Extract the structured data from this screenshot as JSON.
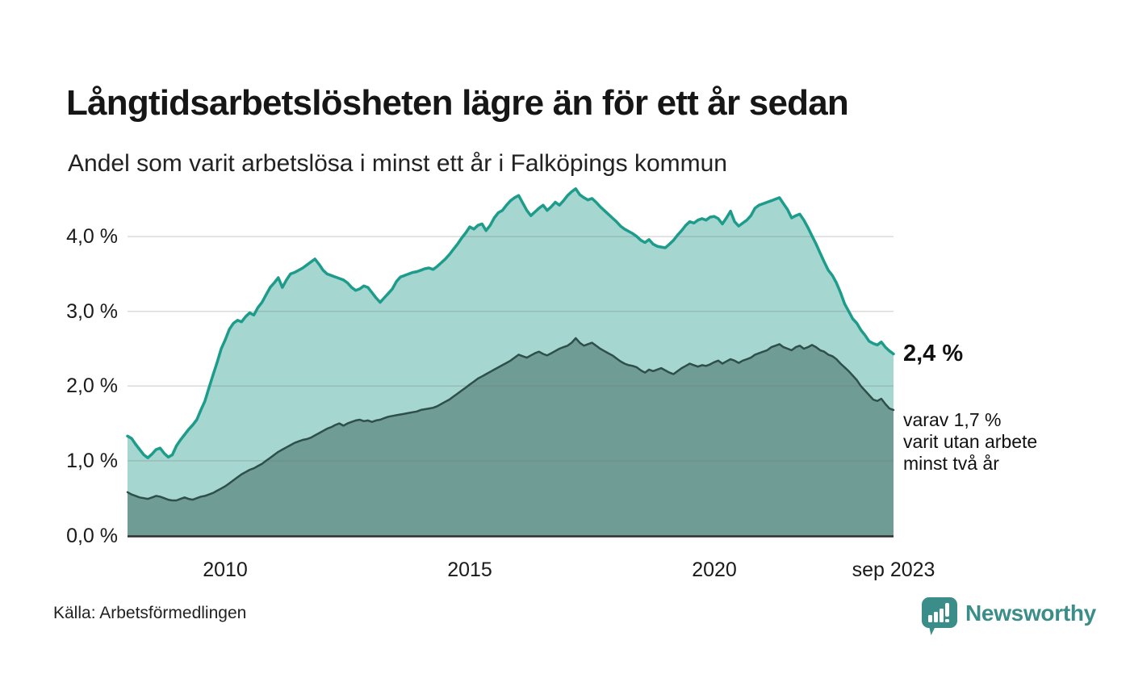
{
  "header": {
    "title": "Långtidsarbetslösheten lägre än för ett år sedan",
    "subtitle": "Andel som varit arbetslösa i minst ett år i Falköpings kommun"
  },
  "annotations": {
    "latest_total": "2,4 %",
    "secondary": "varav 1,7 %\nvarit utan arbete\nminst två år"
  },
  "footer": {
    "source": "Källa: Arbetsförmedlingen",
    "brand": "Newsworthy"
  },
  "colors": {
    "total_line": "#1e9c8b",
    "total_fill": "#a6d6d0",
    "two_years_line": "#2e4f4a",
    "two_years_fill": "#6f9c95",
    "gridline": "rgba(110,110,110,0.25)",
    "axis": "#2f2f2f",
    "brand_teal": "#3a8d88",
    "text": "#1a1a1a"
  },
  "chart_data": {
    "type": "area",
    "title": "Långtidsarbetslösheten lägre än för ett år sedan",
    "subtitle": "Andel som varit arbetslösa i minst ett år i Falköpings kommun",
    "unit": "percent",
    "frequency": "monthly",
    "x_start": "jan 2008",
    "x_end": "sep 2023",
    "ylim": [
      0,
      4.75
    ],
    "grid": "horizontal",
    "y_ticks": [
      {
        "label": "0,0 %",
        "value": 0
      },
      {
        "label": "1,0 %",
        "value": 1
      },
      {
        "label": "2,0 %",
        "value": 2
      },
      {
        "label": "3,0 %",
        "value": 3
      },
      {
        "label": "4,0 %",
        "value": 4
      }
    ],
    "x_ticks": [
      {
        "label": "2010",
        "t": 2010.0
      },
      {
        "label": "2015",
        "t": 2015.0
      },
      {
        "label": "2020",
        "t": 2020.0
      },
      {
        "label": "sep 2023",
        "t": 2023.667
      }
    ],
    "series": [
      {
        "name": "Arbetslösa minst ett år (totalt)",
        "latest_label": "2,4 %",
        "line_color": "#1e9c8b",
        "fill_color": "#a6d6d0",
        "values": [
          1.33,
          1.3,
          1.22,
          1.15,
          1.08,
          1.04,
          1.09,
          1.15,
          1.17,
          1.1,
          1.05,
          1.08,
          1.2,
          1.28,
          1.35,
          1.42,
          1.48,
          1.55,
          1.68,
          1.8,
          1.98,
          2.15,
          2.32,
          2.5,
          2.62,
          2.76,
          2.84,
          2.88,
          2.86,
          2.93,
          2.98,
          2.95,
          3.05,
          3.12,
          3.22,
          3.32,
          3.38,
          3.45,
          3.32,
          3.42,
          3.5,
          3.52,
          3.55,
          3.58,
          3.62,
          3.66,
          3.7,
          3.63,
          3.55,
          3.5,
          3.48,
          3.46,
          3.44,
          3.42,
          3.38,
          3.32,
          3.28,
          3.3,
          3.34,
          3.32,
          3.25,
          3.18,
          3.12,
          3.18,
          3.24,
          3.3,
          3.4,
          3.46,
          3.48,
          3.5,
          3.52,
          3.53,
          3.55,
          3.57,
          3.58,
          3.56,
          3.6,
          3.65,
          3.7,
          3.76,
          3.83,
          3.9,
          3.98,
          4.05,
          4.13,
          4.1,
          4.15,
          4.17,
          4.08,
          4.15,
          4.25,
          4.32,
          4.35,
          4.42,
          4.48,
          4.52,
          4.55,
          4.45,
          4.35,
          4.28,
          4.33,
          4.38,
          4.42,
          4.35,
          4.4,
          4.46,
          4.42,
          4.48,
          4.55,
          4.6,
          4.64,
          4.56,
          4.52,
          4.49,
          4.51,
          4.46,
          4.4,
          4.35,
          4.3,
          4.25,
          4.2,
          4.14,
          4.1,
          4.07,
          4.04,
          4.0,
          3.95,
          3.92,
          3.96,
          3.9,
          3.87,
          3.86,
          3.85,
          3.9,
          3.95,
          4.02,
          4.08,
          4.15,
          4.2,
          4.18,
          4.22,
          4.24,
          4.22,
          4.26,
          4.27,
          4.24,
          4.17,
          4.25,
          4.34,
          4.2,
          4.14,
          4.18,
          4.22,
          4.28,
          4.38,
          4.42,
          4.44,
          4.46,
          4.48,
          4.5,
          4.52,
          4.44,
          4.36,
          4.25,
          4.28,
          4.3,
          4.22,
          4.12,
          4.01,
          3.9,
          3.78,
          3.66,
          3.55,
          3.48,
          3.38,
          3.25,
          3.1,
          3.0,
          2.9,
          2.84,
          2.75,
          2.68,
          2.6,
          2.57,
          2.55,
          2.59,
          2.52,
          2.47,
          2.43
        ]
      },
      {
        "name": "Varav utan arbete minst två år",
        "latest_label": "1,7 %",
        "line_color": "#2e4f4a",
        "fill_color": "#6f9c95",
        "values": [
          0.58,
          0.55,
          0.53,
          0.51,
          0.5,
          0.49,
          0.51,
          0.53,
          0.52,
          0.5,
          0.48,
          0.47,
          0.47,
          0.49,
          0.51,
          0.49,
          0.48,
          0.5,
          0.52,
          0.53,
          0.55,
          0.57,
          0.6,
          0.63,
          0.66,
          0.7,
          0.74,
          0.78,
          0.82,
          0.85,
          0.88,
          0.9,
          0.93,
          0.96,
          1.0,
          1.04,
          1.08,
          1.12,
          1.15,
          1.18,
          1.21,
          1.24,
          1.26,
          1.28,
          1.29,
          1.31,
          1.34,
          1.37,
          1.4,
          1.43,
          1.45,
          1.48,
          1.5,
          1.47,
          1.5,
          1.52,
          1.54,
          1.55,
          1.53,
          1.54,
          1.52,
          1.54,
          1.55,
          1.57,
          1.59,
          1.6,
          1.61,
          1.62,
          1.63,
          1.64,
          1.65,
          1.66,
          1.68,
          1.69,
          1.7,
          1.71,
          1.73,
          1.76,
          1.79,
          1.82,
          1.86,
          1.9,
          1.94,
          1.98,
          2.02,
          2.06,
          2.1,
          2.13,
          2.16,
          2.19,
          2.22,
          2.25,
          2.28,
          2.31,
          2.34,
          2.38,
          2.42,
          2.4,
          2.38,
          2.41,
          2.44,
          2.46,
          2.43,
          2.41,
          2.44,
          2.47,
          2.5,
          2.52,
          2.54,
          2.58,
          2.64,
          2.58,
          2.54,
          2.56,
          2.58,
          2.54,
          2.5,
          2.47,
          2.44,
          2.41,
          2.37,
          2.33,
          2.3,
          2.28,
          2.27,
          2.25,
          2.21,
          2.18,
          2.22,
          2.2,
          2.22,
          2.24,
          2.21,
          2.18,
          2.16,
          2.2,
          2.24,
          2.27,
          2.3,
          2.28,
          2.26,
          2.28,
          2.27,
          2.29,
          2.32,
          2.34,
          2.3,
          2.33,
          2.36,
          2.34,
          2.31,
          2.34,
          2.36,
          2.38,
          2.42,
          2.44,
          2.46,
          2.48,
          2.52,
          2.54,
          2.56,
          2.52,
          2.5,
          2.48,
          2.52,
          2.54,
          2.5,
          2.52,
          2.55,
          2.52,
          2.48,
          2.46,
          2.42,
          2.4,
          2.36,
          2.3,
          2.25,
          2.2,
          2.14,
          2.08,
          2.0,
          1.94,
          1.88,
          1.82,
          1.8,
          1.83,
          1.76,
          1.7,
          1.68
        ]
      }
    ]
  }
}
